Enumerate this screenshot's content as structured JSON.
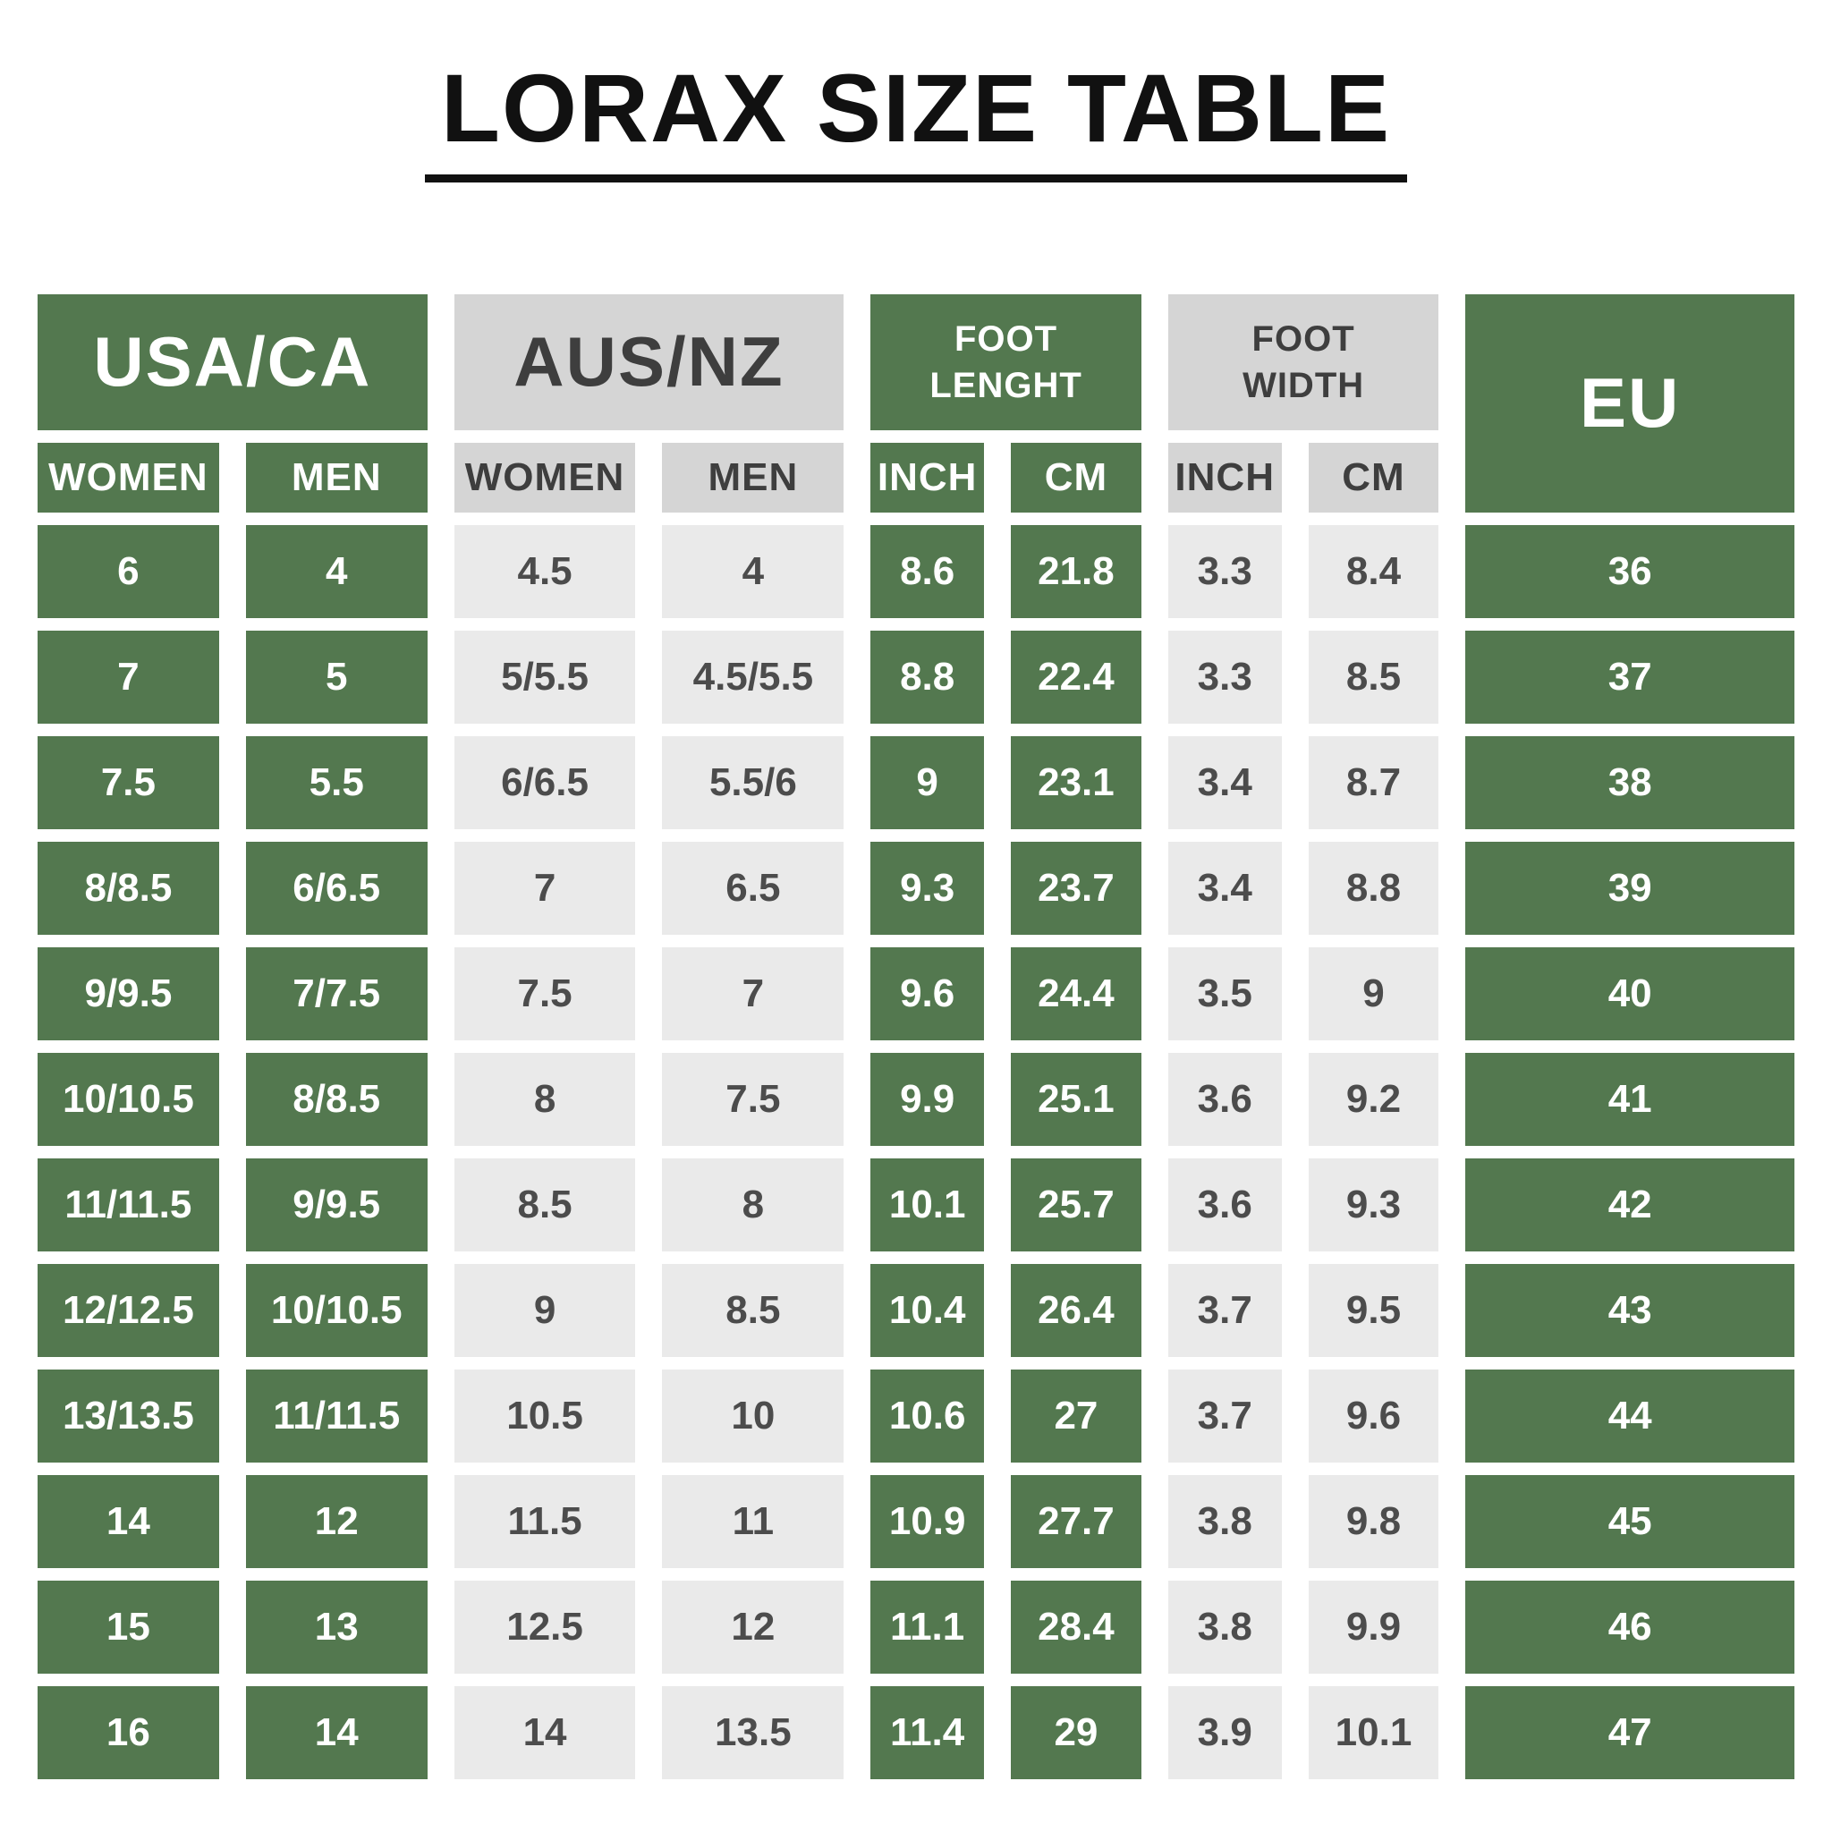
{
  "colors": {
    "green": "#53784f",
    "header_gray": "#d5d5d5",
    "cell_gray": "#eaeaea",
    "header_text": "#3e3e3e",
    "cell_text": "#4c4c4c",
    "white_text": "#ffffff",
    "title_text": "#111111"
  },
  "chart_data": {
    "type": "table",
    "title": "LORAX SIZE TABLE",
    "groups": [
      {
        "label": "USA/CA",
        "style": "green",
        "sub": [
          "WOMEN",
          "MEN"
        ]
      },
      {
        "label": "AUS/NZ",
        "style": "gray",
        "sub": [
          "WOMEN",
          "MEN"
        ]
      },
      {
        "label": "FOOT LENGHT",
        "style": "green",
        "sub": [
          "INCH",
          "CM"
        ]
      },
      {
        "label": "FOOT WIDTH",
        "style": "gray",
        "sub": [
          "INCH",
          "CM"
        ]
      },
      {
        "label": "EU",
        "style": "green",
        "sub": []
      }
    ],
    "column_keys": [
      "usa-women",
      "usa-men",
      "aus-women",
      "aus-men",
      "foot-length-inch",
      "foot-length-cm",
      "foot-width-inch",
      "foot-width-cm",
      "eu"
    ],
    "column_styles": [
      "green",
      "green",
      "light",
      "light",
      "green",
      "green",
      "light",
      "light",
      "green"
    ],
    "rows": [
      [
        "6",
        "4",
        "4.5",
        "4",
        "8.6",
        "21.8",
        "3.3",
        "8.4",
        "36"
      ],
      [
        "7",
        "5",
        "5/5.5",
        "4.5/5.5",
        "8.8",
        "22.4",
        "3.3",
        "8.5",
        "37"
      ],
      [
        "7.5",
        "5.5",
        "6/6.5",
        "5.5/6",
        "9",
        "23.1",
        "3.4",
        "8.7",
        "38"
      ],
      [
        "8/8.5",
        "6/6.5",
        "7",
        "6.5",
        "9.3",
        "23.7",
        "3.4",
        "8.8",
        "39"
      ],
      [
        "9/9.5",
        "7/7.5",
        "7.5",
        "7",
        "9.6",
        "24.4",
        "3.5",
        "9",
        "40"
      ],
      [
        "10/10.5",
        "8/8.5",
        "8",
        "7.5",
        "9.9",
        "25.1",
        "3.6",
        "9.2",
        "41"
      ],
      [
        "11/11.5",
        "9/9.5",
        "8.5",
        "8",
        "10.1",
        "25.7",
        "3.6",
        "9.3",
        "42"
      ],
      [
        "12/12.5",
        "10/10.5",
        "9",
        "8.5",
        "10.4",
        "26.4",
        "3.7",
        "9.5",
        "43"
      ],
      [
        "13/13.5",
        "11/11.5",
        "10.5",
        "10",
        "10.6",
        "27",
        "3.7",
        "9.6",
        "44"
      ],
      [
        "14",
        "12",
        "11.5",
        "11",
        "10.9",
        "27.7",
        "3.8",
        "9.8",
        "45"
      ],
      [
        "15",
        "13",
        "12.5",
        "12",
        "11.1",
        "28.4",
        "3.8",
        "9.9",
        "46"
      ],
      [
        "16",
        "14",
        "14",
        "13.5",
        "11.4",
        "29",
        "3.9",
        "10.1",
        "47"
      ]
    ]
  }
}
